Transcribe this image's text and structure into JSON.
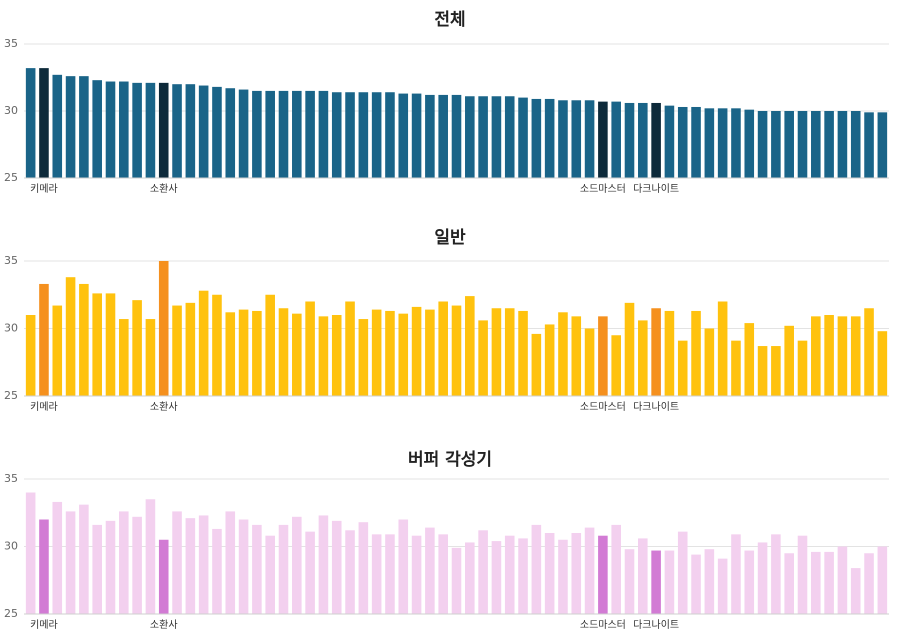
{
  "chart_data": [
    {
      "type": "bar",
      "title": "전체",
      "ylim": [
        25,
        35
      ],
      "yticks": [
        25,
        30,
        35
      ],
      "color": "#1a6488",
      "highlight_color": "#0d2a3a",
      "highlight_indices": [
        1,
        10,
        43,
        47
      ],
      "category_labels": [
        {
          "index": 1,
          "label": "키메라"
        },
        {
          "index": 10,
          "label": "소환사"
        },
        {
          "index": 43,
          "label": "소드마스터"
        },
        {
          "index": 47,
          "label": "다크나이트"
        }
      ],
      "values": [
        33.2,
        33.2,
        32.7,
        32.6,
        32.6,
        32.3,
        32.2,
        32.2,
        32.1,
        32.1,
        32.1,
        32.0,
        32.0,
        31.9,
        31.8,
        31.7,
        31.6,
        31.5,
        31.5,
        31.5,
        31.5,
        31.5,
        31.5,
        31.4,
        31.4,
        31.4,
        31.4,
        31.4,
        31.3,
        31.3,
        31.2,
        31.2,
        31.2,
        31.1,
        31.1,
        31.1,
        31.1,
        31.0,
        30.9,
        30.9,
        30.8,
        30.8,
        30.8,
        30.7,
        30.7,
        30.6,
        30.6,
        30.6,
        30.4,
        30.3,
        30.3,
        30.2,
        30.2,
        30.2,
        30.1,
        30.0,
        30.0,
        30.0,
        30.0,
        30.0,
        30.0,
        30.0,
        30.0,
        29.9,
        29.9
      ]
    },
    {
      "type": "bar",
      "title": "일반",
      "ylim": [
        25,
        35
      ],
      "yticks": [
        25,
        30,
        35
      ],
      "color": "#ffc20e",
      "highlight_color": "#f5901e",
      "highlight_indices": [
        1,
        10,
        43,
        47
      ],
      "category_labels": [
        {
          "index": 1,
          "label": "키메라"
        },
        {
          "index": 10,
          "label": "소환사"
        },
        {
          "index": 43,
          "label": "소드마스터"
        },
        {
          "index": 47,
          "label": "다크나이트"
        }
      ],
      "values": [
        31.0,
        33.3,
        31.7,
        33.8,
        33.3,
        32.6,
        32.6,
        30.7,
        32.1,
        30.7,
        35.0,
        31.7,
        31.9,
        32.8,
        32.5,
        31.2,
        31.4,
        31.3,
        32.5,
        31.5,
        31.1,
        32.0,
        30.9,
        31.0,
        32.0,
        30.7,
        31.4,
        31.3,
        31.1,
        31.6,
        31.4,
        32.0,
        31.7,
        32.4,
        30.6,
        31.5,
        31.5,
        31.3,
        29.6,
        30.3,
        31.2,
        30.9,
        30.0,
        30.9,
        29.5,
        31.9,
        30.6,
        31.5,
        31.3,
        29.1,
        31.3,
        30.0,
        32.0,
        29.1,
        30.4,
        28.7,
        28.7,
        30.2,
        29.1,
        30.9,
        31.0,
        30.9,
        30.9,
        31.5,
        29.8
      ]
    },
    {
      "type": "bar",
      "title": "버퍼 각성기",
      "ylim": [
        25,
        35
      ],
      "yticks": [
        25,
        30,
        35
      ],
      "color": "#f3d0ef",
      "highlight_color": "#d27bd4",
      "highlight_indices": [
        1,
        10,
        43,
        47
      ],
      "category_labels": [
        {
          "index": 1,
          "label": "키메라"
        },
        {
          "index": 10,
          "label": "소환사"
        },
        {
          "index": 43,
          "label": "소드마스터"
        },
        {
          "index": 47,
          "label": "다크나이트"
        }
      ],
      "values": [
        34.0,
        32.0,
        33.3,
        32.6,
        33.1,
        31.6,
        31.9,
        32.6,
        32.2,
        33.5,
        30.5,
        32.6,
        32.1,
        32.3,
        31.3,
        32.6,
        32.0,
        31.6,
        30.8,
        31.6,
        32.2,
        31.1,
        32.3,
        31.9,
        31.2,
        31.8,
        30.9,
        30.9,
        32.0,
        30.8,
        31.4,
        30.9,
        29.9,
        30.3,
        31.2,
        30.4,
        30.8,
        30.6,
        31.6,
        31.0,
        30.5,
        31.0,
        31.4,
        30.8,
        31.6,
        29.8,
        30.6,
        29.7,
        29.7,
        31.1,
        29.4,
        29.8,
        29.1,
        30.9,
        29.7,
        30.3,
        30.9,
        29.5,
        30.8,
        29.6,
        29.6,
        30.0,
        28.4,
        29.5,
        30.0
      ]
    }
  ]
}
